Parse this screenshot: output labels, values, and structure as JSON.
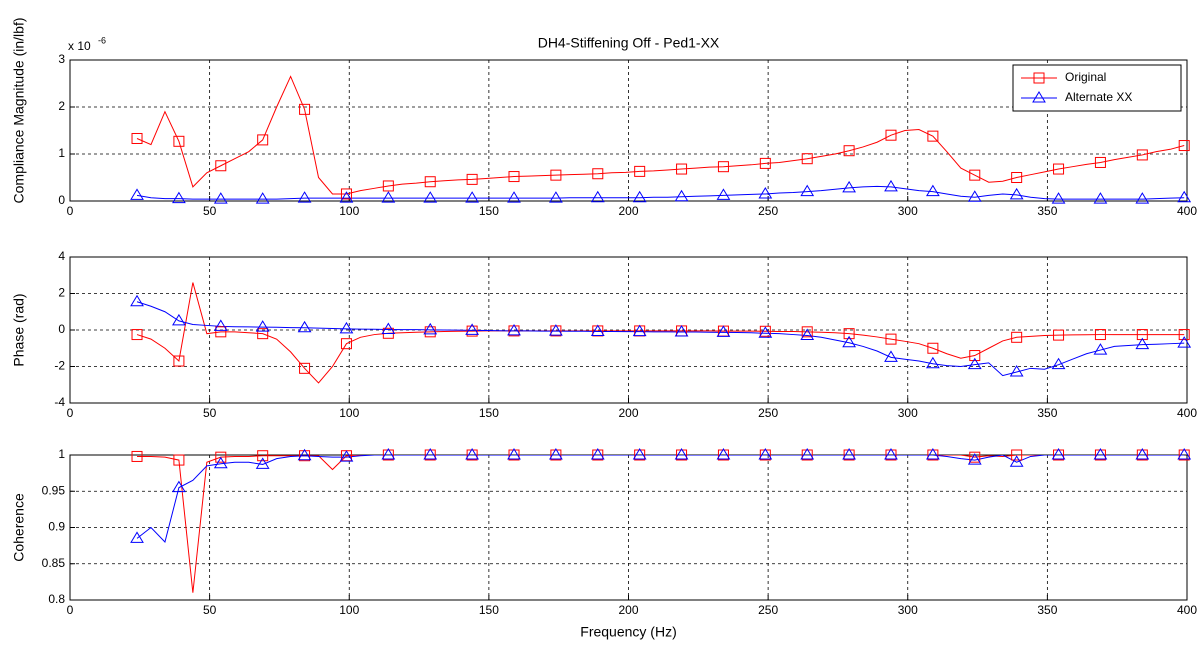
{
  "chart_data": [
    {
      "type": "line",
      "title": "DH4-Stiffening Off - Ped1-XX",
      "y_label": "Compliance Magnitude (in/lbf)",
      "y_multiplier": "x 10",
      "y_exponent": "-6",
      "grid": true,
      "legend": "northeast",
      "marker_every": 3,
      "x": [
        24,
        29,
        34,
        39,
        44,
        49,
        54,
        59,
        64,
        69,
        74,
        79,
        84,
        89,
        94,
        99,
        104,
        109,
        114,
        119,
        124,
        129,
        134,
        139,
        144,
        149,
        154,
        159,
        164,
        169,
        174,
        179,
        184,
        189,
        194,
        199,
        204,
        209,
        214,
        219,
        224,
        229,
        234,
        239,
        244,
        249,
        254,
        259,
        264,
        269,
        274,
        279,
        284,
        289,
        294,
        299,
        304,
        309,
        314,
        319,
        324,
        329,
        334,
        339,
        344,
        349,
        354,
        359,
        364,
        369,
        374,
        379,
        384,
        389,
        394,
        399
      ],
      "xlim": [
        0,
        400
      ],
      "xticks": [
        0,
        50,
        100,
        150,
        200,
        250,
        300,
        350,
        400
      ],
      "ylim": [
        0,
        3
      ],
      "yticks": [
        0,
        1,
        2,
        3
      ],
      "series": [
        {
          "name": "Original",
          "color": "#ff0000",
          "marker": "square",
          "values": [
            1.33,
            1.2,
            1.9,
            1.27,
            0.3,
            0.6,
            0.75,
            0.9,
            1.05,
            1.3,
            2.0,
            2.65,
            1.95,
            0.5,
            0.15,
            0.15,
            0.22,
            0.27,
            0.32,
            0.36,
            0.38,
            0.41,
            0.43,
            0.45,
            0.46,
            0.48,
            0.5,
            0.52,
            0.53,
            0.54,
            0.55,
            0.56,
            0.57,
            0.58,
            0.6,
            0.61,
            0.63,
            0.64,
            0.66,
            0.68,
            0.7,
            0.72,
            0.73,
            0.75,
            0.77,
            0.8,
            0.82,
            0.86,
            0.9,
            0.95,
            1.0,
            1.07,
            1.15,
            1.25,
            1.4,
            1.5,
            1.52,
            1.38,
            1.05,
            0.7,
            0.55,
            0.4,
            0.42,
            0.5,
            0.56,
            0.62,
            0.68,
            0.73,
            0.78,
            0.82,
            0.88,
            0.93,
            0.98,
            1.05,
            1.1,
            1.18
          ]
        },
        {
          "name": "Alternate XX",
          "color": "#0000ff",
          "marker": "triangle",
          "values": [
            0.12,
            0.07,
            0.05,
            0.05,
            0.04,
            0.04,
            0.04,
            0.04,
            0.04,
            0.04,
            0.04,
            0.05,
            0.06,
            0.06,
            0.06,
            0.06,
            0.06,
            0.06,
            0.06,
            0.06,
            0.06,
            0.06,
            0.06,
            0.06,
            0.06,
            0.06,
            0.06,
            0.06,
            0.06,
            0.06,
            0.06,
            0.07,
            0.07,
            0.07,
            0.07,
            0.07,
            0.07,
            0.08,
            0.08,
            0.09,
            0.1,
            0.11,
            0.12,
            0.13,
            0.14,
            0.15,
            0.17,
            0.18,
            0.2,
            0.22,
            0.25,
            0.28,
            0.3,
            0.31,
            0.3,
            0.26,
            0.22,
            0.2,
            0.15,
            0.1,
            0.08,
            0.12,
            0.15,
            0.13,
            0.08,
            0.05,
            0.04,
            0.04,
            0.04,
            0.04,
            0.04,
            0.04,
            0.04,
            0.05,
            0.06,
            0.07
          ]
        }
      ]
    },
    {
      "type": "line",
      "y_label": "Phase (rad)",
      "grid": true,
      "marker_every": 3,
      "x": [
        24,
        29,
        34,
        39,
        44,
        49,
        54,
        59,
        64,
        69,
        74,
        79,
        84,
        89,
        94,
        99,
        104,
        109,
        114,
        119,
        124,
        129,
        134,
        139,
        144,
        149,
        154,
        159,
        164,
        169,
        174,
        179,
        184,
        189,
        194,
        199,
        204,
        209,
        214,
        219,
        224,
        229,
        234,
        239,
        244,
        249,
        254,
        259,
        264,
        269,
        274,
        279,
        284,
        289,
        294,
        299,
        304,
        309,
        314,
        319,
        324,
        329,
        334,
        339,
        344,
        349,
        354,
        359,
        364,
        369,
        374,
        379,
        384,
        389,
        394,
        399
      ],
      "xlim": [
        0,
        400
      ],
      "xticks": [
        0,
        50,
        100,
        150,
        200,
        250,
        300,
        350,
        400
      ],
      "ylim": [
        -4,
        4
      ],
      "yticks": [
        -4,
        -2,
        0,
        2,
        4
      ],
      "series": [
        {
          "name": "Original",
          "color": "#ff0000",
          "marker": "square",
          "values": [
            -0.25,
            -0.5,
            -1.0,
            -1.7,
            2.6,
            -0.2,
            -0.1,
            -0.1,
            -0.15,
            -0.2,
            -0.5,
            -1.2,
            -2.1,
            -2.9,
            -2.0,
            -0.75,
            -0.4,
            -0.25,
            -0.18,
            -0.15,
            -0.12,
            -0.1,
            -0.08,
            -0.07,
            -0.06,
            -0.05,
            -0.05,
            -0.05,
            -0.05,
            -0.05,
            -0.05,
            -0.05,
            -0.05,
            -0.05,
            -0.05,
            -0.05,
            -0.05,
            -0.05,
            -0.05,
            -0.05,
            -0.05,
            -0.05,
            -0.06,
            -0.06,
            -0.06,
            -0.07,
            -0.08,
            -0.08,
            -0.1,
            -0.12,
            -0.15,
            -0.2,
            -0.28,
            -0.38,
            -0.5,
            -0.62,
            -0.75,
            -1.0,
            -1.3,
            -1.55,
            -1.4,
            -1.0,
            -0.6,
            -0.4,
            -0.35,
            -0.3,
            -0.28,
            -0.27,
            -0.26,
            -0.25,
            -0.25,
            -0.25,
            -0.25,
            -0.25,
            -0.25,
            -0.25
          ]
        },
        {
          "name": "Alternate XX",
          "color": "#0000ff",
          "marker": "triangle",
          "values": [
            1.55,
            1.3,
            1.0,
            0.5,
            0.3,
            0.25,
            0.2,
            0.18,
            0.17,
            0.16,
            0.15,
            0.13,
            0.12,
            0.1,
            0.08,
            0.06,
            0.05,
            0.04,
            0.03,
            0.02,
            0.02,
            0.01,
            0.0,
            -0.01,
            -0.02,
            -0.03,
            -0.04,
            -0.05,
            -0.05,
            -0.06,
            -0.06,
            -0.07,
            -0.07,
            -0.08,
            -0.08,
            -0.09,
            -0.09,
            -0.1,
            -0.1,
            -0.11,
            -0.11,
            -0.12,
            -0.13,
            -0.14,
            -0.15,
            -0.18,
            -0.2,
            -0.25,
            -0.3,
            -0.4,
            -0.55,
            -0.7,
            -0.9,
            -1.15,
            -1.5,
            -1.6,
            -1.7,
            -1.85,
            -1.95,
            -2.0,
            -1.9,
            -1.8,
            -2.5,
            -2.3,
            -2.1,
            -2.15,
            -1.9,
            -1.6,
            -1.3,
            -1.1,
            -0.9,
            -0.85,
            -0.8,
            -0.78,
            -0.75,
            -0.72
          ]
        }
      ]
    },
    {
      "type": "line",
      "y_label": "Coherence",
      "x_label": "Frequency (Hz)",
      "grid": true,
      "marker_every": 3,
      "x": [
        24,
        29,
        34,
        39,
        44,
        49,
        54,
        59,
        64,
        69,
        74,
        79,
        84,
        89,
        94,
        99,
        104,
        109,
        114,
        119,
        124,
        129,
        134,
        139,
        144,
        149,
        154,
        159,
        164,
        169,
        174,
        179,
        184,
        189,
        194,
        199,
        204,
        209,
        214,
        219,
        224,
        229,
        234,
        239,
        244,
        249,
        254,
        259,
        264,
        269,
        274,
        279,
        284,
        289,
        294,
        299,
        304,
        309,
        314,
        319,
        324,
        329,
        334,
        339,
        344,
        349,
        354,
        359,
        364,
        369,
        374,
        379,
        384,
        389,
        394,
        399
      ],
      "xlim": [
        0,
        400
      ],
      "xticks": [
        0,
        50,
        100,
        150,
        200,
        250,
        300,
        350,
        400
      ],
      "ylim": [
        0.8,
        1
      ],
      "yticks": [
        0.8,
        0.85,
        0.9,
        0.95,
        1
      ],
      "series": [
        {
          "name": "Original",
          "color": "#ff0000",
          "marker": "square",
          "values": [
            0.998,
            0.998,
            0.997,
            0.993,
            0.81,
            0.99,
            0.997,
            0.998,
            0.998,
            0.999,
            0.999,
            0.999,
            0.999,
            0.999,
            0.98,
            0.999,
            1,
            1,
            1,
            1,
            1,
            1,
            1,
            1,
            1,
            1,
            1,
            1,
            1,
            1,
            1,
            1,
            1,
            1,
            1,
            1,
            1,
            1,
            1,
            1,
            1,
            1,
            1,
            1,
            1,
            1,
            1,
            1,
            1,
            1,
            1,
            1,
            1,
            1,
            1,
            1,
            1,
            1,
            1,
            1,
            0.997,
            0.999,
            0.998,
            1,
            1,
            1,
            1,
            1,
            1,
            1,
            1,
            1,
            1,
            1,
            1,
            1
          ]
        },
        {
          "name": "Alternate XX",
          "color": "#0000ff",
          "marker": "triangle",
          "values": [
            0.885,
            0.9,
            0.88,
            0.955,
            0.965,
            0.985,
            0.988,
            0.99,
            0.99,
            0.987,
            0.995,
            0.998,
            0.999,
            0.998,
            0.997,
            0.997,
            0.999,
            1,
            1,
            1,
            1,
            1,
            1,
            1,
            1,
            1,
            1,
            1,
            1,
            1,
            1,
            1,
            1,
            1,
            1,
            1,
            1,
            1,
            1,
            1,
            1,
            1,
            1,
            1,
            1,
            1,
            1,
            1,
            1,
            1,
            1,
            1,
            1,
            1,
            1,
            1,
            1,
            1,
            0.998,
            0.995,
            0.993,
            0.997,
            1,
            0.99,
            0.998,
            1,
            1,
            1,
            1,
            1,
            1,
            1,
            1,
            1,
            1,
            1
          ]
        }
      ]
    }
  ]
}
